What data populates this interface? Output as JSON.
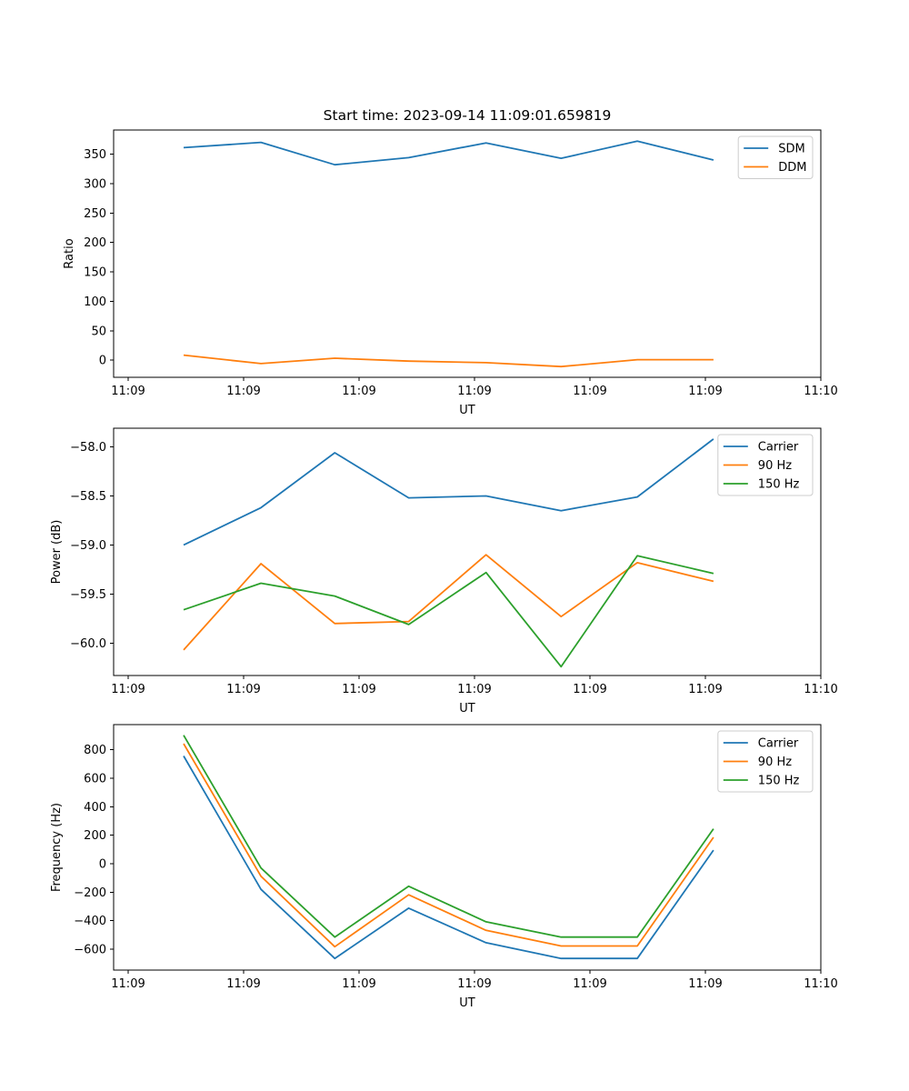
{
  "title": "Start time: 2023-09-14 11:09:01.659819",
  "background_color": "#ffffff",
  "palette": {
    "blue": "#1f77b4",
    "orange": "#ff7f0e",
    "green": "#2ca02c"
  },
  "chart_data": [
    {
      "type": "line",
      "xlabel": "UT",
      "ylabel": "Ratio",
      "x_seconds_after_1109": [
        4.8,
        11.5,
        17.9,
        24.3,
        31.0,
        37.5,
        44.1,
        50.7
      ],
      "xlim": [
        -1.26,
        60
      ],
      "ylim": [
        -29,
        391
      ],
      "grid": false,
      "legend_position": "upper right",
      "xticks": {
        "values": [
          0,
          10,
          20,
          30,
          40,
          50,
          60
        ],
        "labels": [
          "11:09",
          "11:09",
          "11:09",
          "11:09",
          "11:09",
          "11:09",
          "11:10"
        ]
      },
      "yticks": {
        "values": [
          0,
          50,
          100,
          150,
          200,
          250,
          300,
          350
        ],
        "labels": [
          "0",
          "50",
          "100",
          "150",
          "200",
          "250",
          "300",
          "350"
        ]
      },
      "series": [
        {
          "name": "SDM",
          "color": "#1f77b4",
          "values": [
            361,
            370,
            332,
            344,
            369,
            343,
            372,
            340
          ]
        },
        {
          "name": "DDM",
          "color": "#ff7f0e",
          "values": [
            8.6,
            -5.7,
            3.5,
            -1.5,
            -4.2,
            -10.8,
            0.9,
            0.9
          ]
        }
      ]
    },
    {
      "type": "line",
      "xlabel": "UT",
      "ylabel": "Power (dB)",
      "x_seconds_after_1109": [
        4.8,
        11.5,
        17.9,
        24.3,
        31.0,
        37.5,
        44.1,
        50.7
      ],
      "xlim": [
        -1.26,
        60
      ],
      "ylim": [
        -60.33,
        -57.81
      ],
      "grid": false,
      "legend_position": "upper right",
      "xticks": {
        "values": [
          0,
          10,
          20,
          30,
          40,
          50,
          60
        ],
        "labels": [
          "11:09",
          "11:09",
          "11:09",
          "11:09",
          "11:09",
          "11:09",
          "11:10"
        ]
      },
      "yticks": {
        "values": [
          -58.0,
          -58.5,
          -59.0,
          -59.5,
          -60.0
        ],
        "labels": [
          "−58.0",
          "−58.5",
          "−59.0",
          "−59.5",
          "−60.0"
        ]
      },
      "series": [
        {
          "name": "Carrier",
          "color": "#1f77b4",
          "values": [
            -59.0,
            -58.62,
            -58.06,
            -58.52,
            -58.5,
            -58.65,
            -58.51,
            -57.92
          ]
        },
        {
          "name": "90 Hz",
          "color": "#ff7f0e",
          "values": [
            -60.07,
            -59.19,
            -59.8,
            -59.78,
            -59.1,
            -59.73,
            -59.18,
            -59.37
          ]
        },
        {
          "name": "150 Hz",
          "color": "#2ca02c",
          "values": [
            -59.66,
            -59.39,
            -59.52,
            -59.81,
            -59.28,
            -60.24,
            -59.11,
            -59.29
          ]
        }
      ]
    },
    {
      "type": "line",
      "xlabel": "UT",
      "ylabel": "Frequency (Hz)",
      "x_seconds_after_1109": [
        4.8,
        11.5,
        17.9,
        24.3,
        31.0,
        37.5,
        44.1,
        50.7
      ],
      "xlim": [
        -1.26,
        60
      ],
      "ylim": [
        -747,
        977
      ],
      "grid": false,
      "legend_position": "upper right",
      "xticks": {
        "values": [
          0,
          10,
          20,
          30,
          40,
          50,
          60
        ],
        "labels": [
          "11:09",
          "11:09",
          "11:09",
          "11:09",
          "11:09",
          "11:09",
          "11:10"
        ]
      },
      "yticks": {
        "values": [
          800,
          600,
          400,
          200,
          0,
          -200,
          -400,
          -600
        ],
        "labels": [
          "800",
          "600",
          "400",
          "200",
          "0",
          "−200",
          "−400",
          "−600"
        ]
      },
      "series": [
        {
          "name": "Carrier",
          "color": "#1f77b4",
          "values": [
            757,
            -180,
            -665,
            -312,
            -555,
            -665,
            -665,
            95
          ]
        },
        {
          "name": "90 Hz",
          "color": "#ff7f0e",
          "values": [
            843,
            -88,
            -583,
            -218,
            -468,
            -578,
            -578,
            185
          ]
        },
        {
          "name": "150 Hz",
          "color": "#2ca02c",
          "values": [
            902,
            -30,
            -515,
            -158,
            -408,
            -515,
            -515,
            245
          ]
        }
      ]
    }
  ]
}
